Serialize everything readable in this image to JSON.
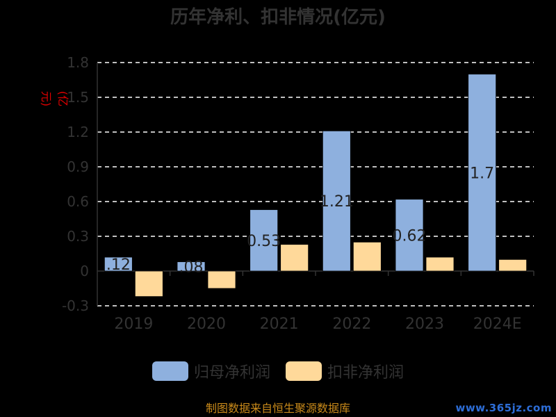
{
  "chart_data": {
    "type": "bar",
    "title": "历年净利、扣非情况(亿元)",
    "ylabel": "(亿元)",
    "categories": [
      "2019",
      "2020",
      "2021",
      "2022",
      "2023",
      "2024E"
    ],
    "series": [
      {
        "name": "归母净利润",
        "color": "#8eb0de",
        "values": [
          0.12,
          0.08,
          0.53,
          1.21,
          0.62,
          1.7
        ],
        "labels": [
          ".12",
          ".08",
          "0.53",
          "1.21",
          "0.62",
          "1.7"
        ]
      },
      {
        "name": "扣非净利润",
        "color": "#ffd99a",
        "values": [
          -0.22,
          -0.15,
          0.23,
          0.25,
          0.12,
          0.1
        ]
      }
    ],
    "ylim": [
      -0.3,
      1.8
    ],
    "yticks": [
      "-0.3",
      "0",
      "0.3",
      "0.6",
      "0.9",
      "1.2",
      "1.5",
      "1.8"
    ],
    "grid": true,
    "legend": "bottom"
  },
  "source_text": "制图数据来自恒生聚源数据库",
  "watermark_text": "www.365jz.com"
}
